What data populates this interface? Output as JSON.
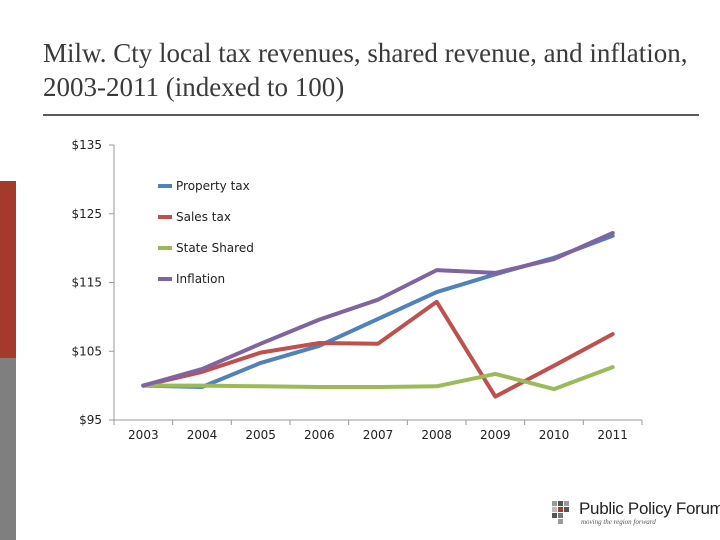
{
  "slide": {
    "title": "Milw. Cty local tax revenues, shared revenue, and inflation, 2003-2011 (indexed to 100)"
  },
  "logo": {
    "name": "Public Policy Forum",
    "tagline": "moving the region forward",
    "icon": "public-policy-forum-logo-icon"
  },
  "colors": {
    "accent_red": "#a33a2c",
    "accent_gray": "#7f7f7f"
  },
  "chart_data": {
    "type": "line",
    "title": "",
    "xlabel": "",
    "ylabel": "",
    "categories": [
      "2003",
      "2004",
      "2005",
      "2006",
      "2007",
      "2008",
      "2009",
      "2010",
      "2011"
    ],
    "y_ticks": [
      95,
      105,
      115,
      125,
      135
    ],
    "y_tick_labels": [
      "$95",
      "$105",
      "$115",
      "$125",
      "$135"
    ],
    "ylim": [
      95,
      135
    ],
    "grid": false,
    "legend_position": "top-left",
    "series": [
      {
        "name": "Property tax",
        "color": "#4f81bd",
        "values": [
          100,
          99.8,
          103.3,
          105.8,
          109.7,
          113.6,
          116.2,
          118.6,
          121.8
        ]
      },
      {
        "name": "Sales tax",
        "color": "#c0504d",
        "values": [
          100,
          102,
          104.8,
          106.2,
          106.1,
          112.2,
          98.4,
          102.9,
          107.5
        ]
      },
      {
        "name": "State Shared",
        "color": "#9bbb59",
        "values": [
          100,
          100,
          99.9,
          99.8,
          99.8,
          99.9,
          101.7,
          99.5,
          102.7
        ]
      },
      {
        "name": "Inflation",
        "color": "#8064a2",
        "values": [
          100,
          102.4,
          106.1,
          109.6,
          112.5,
          116.8,
          116.4,
          118.4,
          122.2
        ]
      }
    ]
  }
}
